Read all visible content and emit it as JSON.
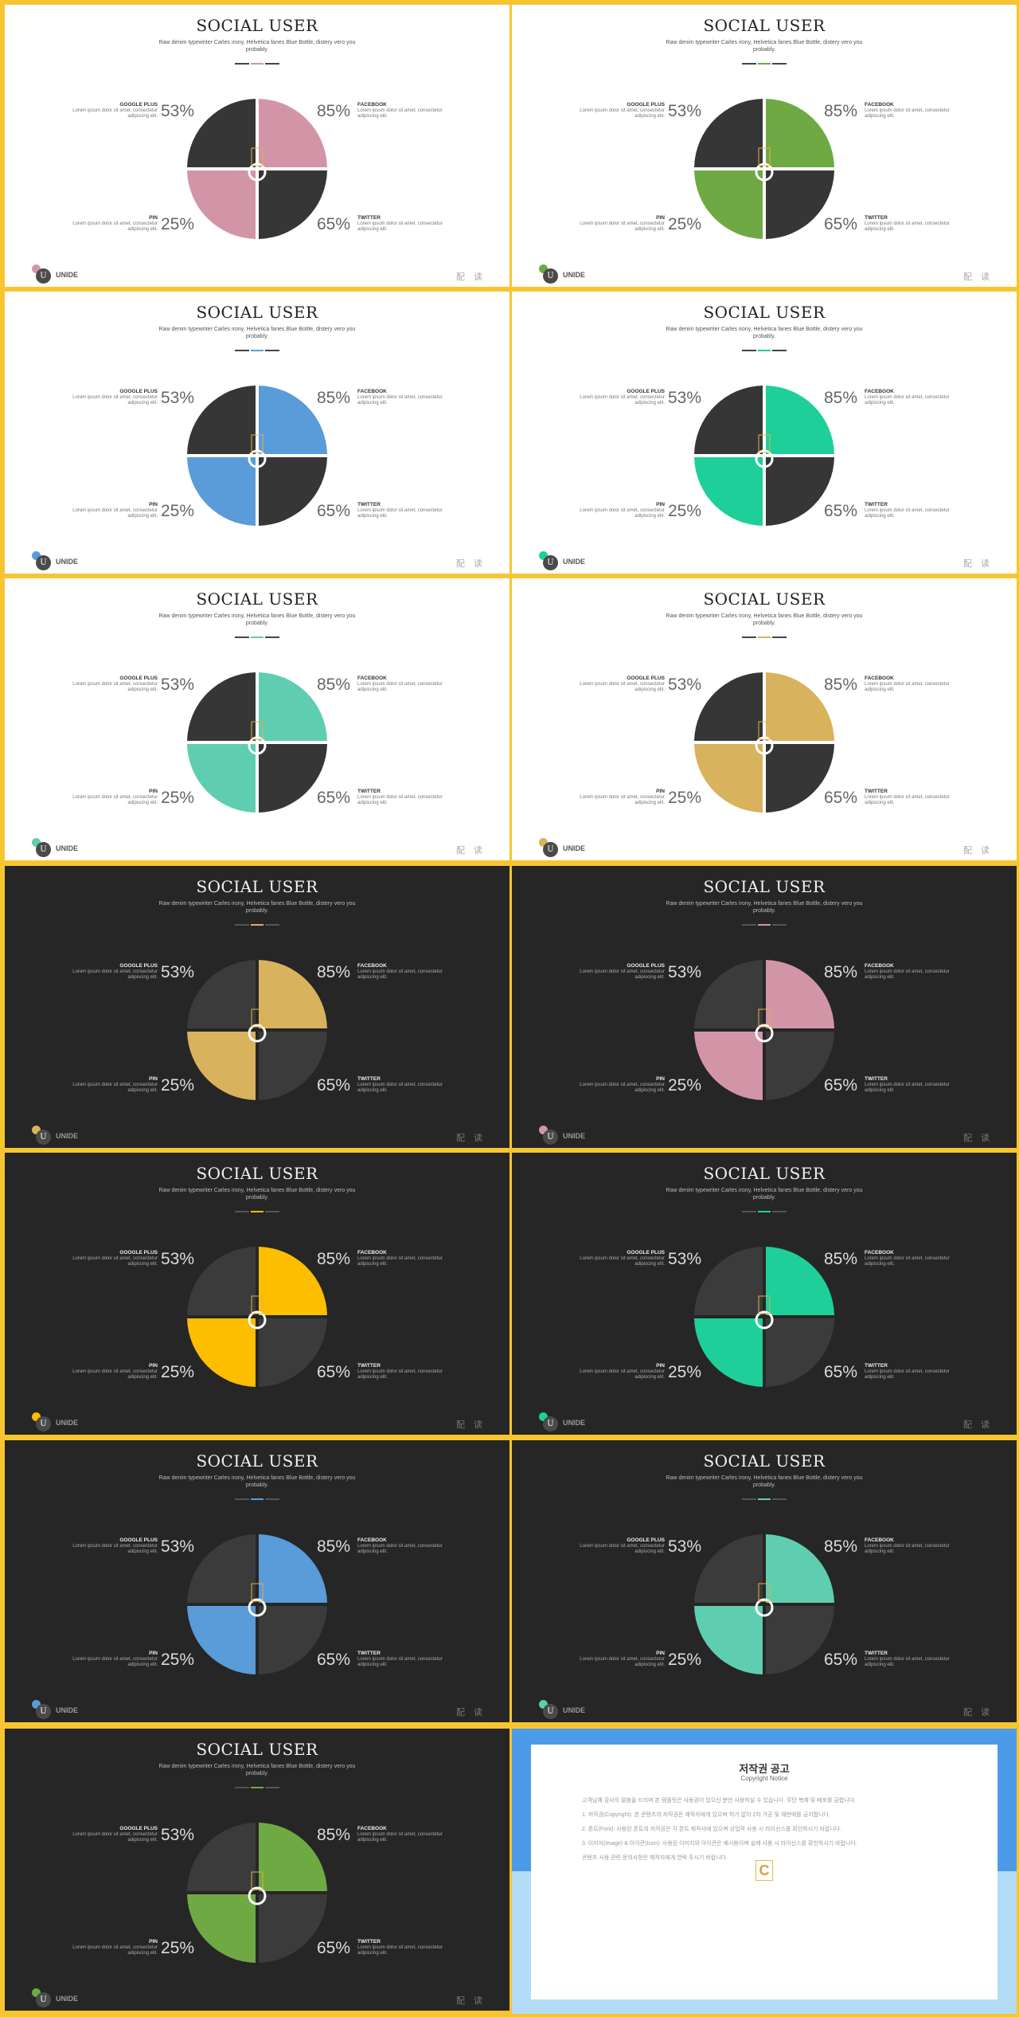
{
  "slide_title": "SOCIAL USER",
  "slide_subtitle": "Raw denim typewriter Carles irony, Helvetica fanes Blue Bottle, distery vero you probably.",
  "percent_tl": "53%",
  "percent_tr": "85%",
  "percent_bl": "25%",
  "percent_br": "65%",
  "label_tl": {
    "name": "GOOGLE PLUS",
    "text": "Lorem ipsum dolor sit amet, consectetur adipiscing elit."
  },
  "label_tr": {
    "name": "FACEBOOK",
    "text": "Lorem ipsum dolor sit amet, consectetur adipiscing elit."
  },
  "label_bl": {
    "name": "PIN",
    "text": "Lorem ipsum dolor sit amet, consectetur adipiscing elit."
  },
  "label_br": {
    "name": "TWITTER",
    "text": "Lorem ipsum dolor sit amet, consectetur adipiscing elit."
  },
  "brand": "UNIDE",
  "pager": "配 读",
  "logo_letter": "U",
  "slides": [
    {
      "theme": "light",
      "accent": "#d295a7"
    },
    {
      "theme": "light",
      "accent": "#6ea944"
    },
    {
      "theme": "light",
      "accent": "#5a9bd9"
    },
    {
      "theme": "light",
      "accent": "#1ecf99"
    },
    {
      "theme": "light",
      "accent": "#5fcdb0"
    },
    {
      "theme": "light",
      "accent": "#d8b25c"
    },
    {
      "theme": "dark",
      "accent": "#d8b25c"
    },
    {
      "theme": "dark",
      "accent": "#d295a7"
    },
    {
      "theme": "dark",
      "accent": "#fdbe00"
    },
    {
      "theme": "dark",
      "accent": "#1ecf99"
    },
    {
      "theme": "dark",
      "accent": "#5a9bd9"
    },
    {
      "theme": "dark",
      "accent": "#5fcdb0"
    },
    {
      "theme": "dark",
      "accent": "#6ea944"
    }
  ],
  "notice": {
    "title": "저작권 공고",
    "subtitle": "Copyright Notice",
    "logo_letter": "C",
    "paragraphs": [
      "고객님께 감사의 말씀을 드리며 본 템플릿은 사용권이 있으신 분만 사용하실 수 있습니다. 무단 복제 및 배포를 금합니다.",
      "1. 저작권(Copyright): 본 콘텐츠의 저작권은 제작자에게 있으며 허가 없이 2차 가공 및 재판매를 금지합니다.",
      "2. 폰트(Font): 사용된 폰트의 저작권은 각 폰트 제작사에 있으며 상업적 사용 시 라이선스를 확인하시기 바랍니다.",
      "3. 이미지(Image) & 아이콘(Icon): 사용된 이미지와 아이콘은 예시용이며 실제 사용 시 라이선스를 확인하시기 바랍니다.",
      "콘텐츠 사용 관련 문의사항은 제작자에게 연락 주시기 바랍니다."
    ]
  }
}
